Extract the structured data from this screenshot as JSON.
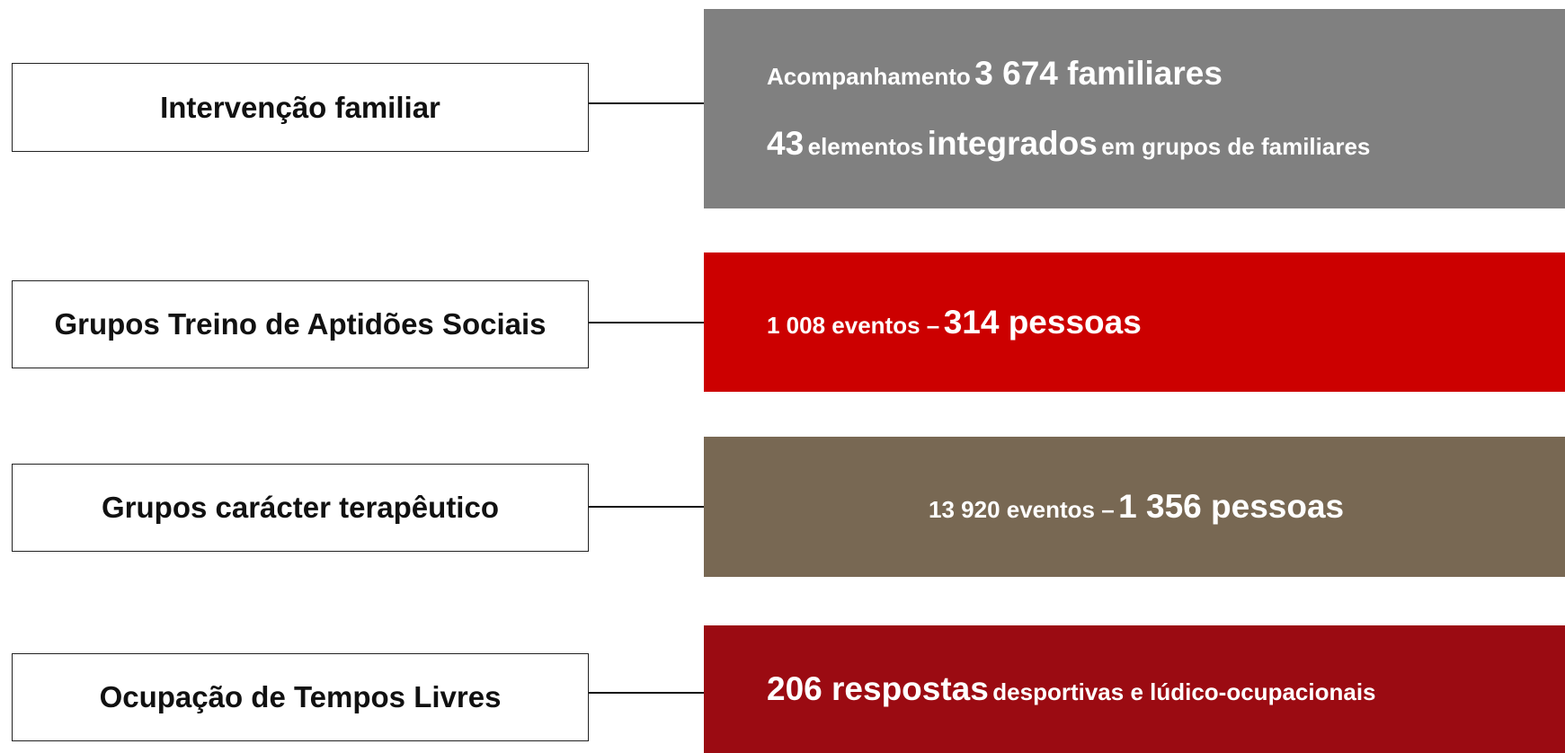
{
  "items": [
    {
      "label": "Intervenção familiar",
      "lines": [
        [
          "Acompanhamento",
          "3 674 familiares"
        ],
        [
          "43",
          "elementos",
          "integrados",
          "em grupos de familiares"
        ]
      ]
    },
    {
      "label": "Grupos Treino de Aptidões Sociais",
      "lines": [
        [
          "1 008 eventos –",
          "314 pessoas"
        ]
      ]
    },
    {
      "label": "Grupos carácter terapêutico",
      "lines": [
        [
          "13 920 eventos –",
          "1 356 pessoas"
        ]
      ]
    },
    {
      "label": "Ocupação de Tempos Livres",
      "lines": [
        [
          "206 respostas",
          "desportivas e lúdico-ocupacionais"
        ]
      ]
    }
  ]
}
